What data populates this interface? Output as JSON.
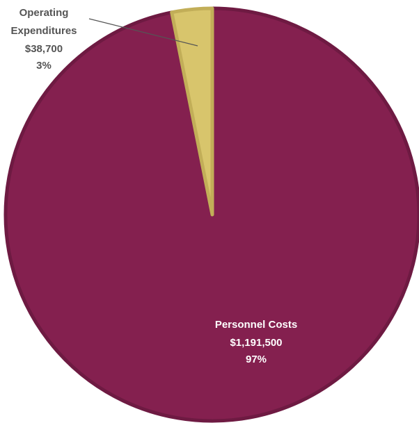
{
  "chart_data": {
    "type": "pie",
    "title": "",
    "slices": [
      {
        "name": "Personnel Costs",
        "value": 1191500,
        "value_label": "$1,191,500",
        "percent_label": "97%",
        "color": "#84204f",
        "border": "#6e1a42"
      },
      {
        "name": "Operating Expenditures",
        "name_lines": [
          "Operating",
          "Expenditures"
        ],
        "value": 38700,
        "value_label": "$38,700",
        "percent_label": "3%",
        "color": "#d8c56c",
        "border": "#c2ae58"
      }
    ],
    "legend": "none",
    "labels": "on-chart"
  }
}
